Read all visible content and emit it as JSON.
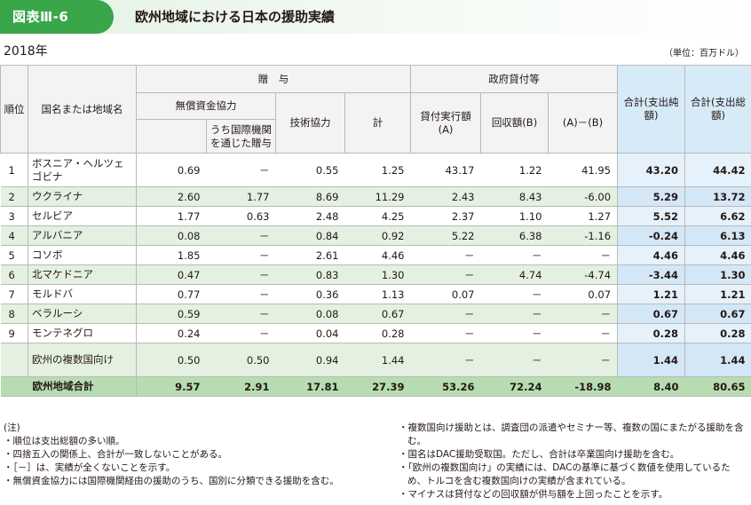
{
  "header": {
    "figure_label": "図表Ⅲ-6",
    "title": "欧州地域における日本の援助実績"
  },
  "year": "2018年",
  "unit": "（単位：百万ドル）",
  "columns": {
    "rank": "順位",
    "name": "国名または地域名",
    "grant_group": "贈　与",
    "grant_aid": "無償資金協力",
    "via_intl": "うち国際機関を通じた贈与",
    "tech_coop": "技術協力",
    "subtotal": "計",
    "loan_group": "政府貸付等",
    "disbursed": "貸付実行額(A)",
    "recovered": "回収額(B)",
    "net_loan": "(A)－(B)",
    "net_total": "合計(支出純額)",
    "gross_total": "合計(支出総額)"
  },
  "rows": [
    {
      "rank": "1",
      "name": "ボスニア・ヘルツェゴビナ",
      "grant_aid": "0.69",
      "via_intl": "－",
      "tech_coop": "0.55",
      "subtotal": "1.25",
      "disbursed": "43.17",
      "recovered": "1.22",
      "net_loan": "41.95",
      "net_total": "43.20",
      "gross_total": "44.42"
    },
    {
      "rank": "2",
      "name": "ウクライナ",
      "grant_aid": "2.60",
      "via_intl": "1.77",
      "tech_coop": "8.69",
      "subtotal": "11.29",
      "disbursed": "2.43",
      "recovered": "8.43",
      "net_loan": "-6.00",
      "net_total": "5.29",
      "gross_total": "13.72"
    },
    {
      "rank": "3",
      "name": "セルビア",
      "grant_aid": "1.77",
      "via_intl": "0.63",
      "tech_coop": "2.48",
      "subtotal": "4.25",
      "disbursed": "2.37",
      "recovered": "1.10",
      "net_loan": "1.27",
      "net_total": "5.52",
      "gross_total": "6.62"
    },
    {
      "rank": "4",
      "name": "アルバニア",
      "grant_aid": "0.08",
      "via_intl": "－",
      "tech_coop": "0.84",
      "subtotal": "0.92",
      "disbursed": "5.22",
      "recovered": "6.38",
      "net_loan": "-1.16",
      "net_total": "-0.24",
      "gross_total": "6.13"
    },
    {
      "rank": "5",
      "name": "コソボ",
      "grant_aid": "1.85",
      "via_intl": "－",
      "tech_coop": "2.61",
      "subtotal": "4.46",
      "disbursed": "－",
      "recovered": "－",
      "net_loan": "－",
      "net_total": "4.46",
      "gross_total": "4.46"
    },
    {
      "rank": "6",
      "name": "北マケドニア",
      "grant_aid": "0.47",
      "via_intl": "－",
      "tech_coop": "0.83",
      "subtotal": "1.30",
      "disbursed": "－",
      "recovered": "4.74",
      "net_loan": "-4.74",
      "net_total": "-3.44",
      "gross_total": "1.30"
    },
    {
      "rank": "7",
      "name": "モルドバ",
      "grant_aid": "0.77",
      "via_intl": "－",
      "tech_coop": "0.36",
      "subtotal": "1.13",
      "disbursed": "0.07",
      "recovered": "－",
      "net_loan": "0.07",
      "net_total": "1.21",
      "gross_total": "1.21"
    },
    {
      "rank": "8",
      "name": "ベラルーシ",
      "grant_aid": "0.59",
      "via_intl": "－",
      "tech_coop": "0.08",
      "subtotal": "0.67",
      "disbursed": "－",
      "recovered": "－",
      "net_loan": "－",
      "net_total": "0.67",
      "gross_total": "0.67"
    },
    {
      "rank": "9",
      "name": "モンテネグロ",
      "grant_aid": "0.24",
      "via_intl": "－",
      "tech_coop": "0.04",
      "subtotal": "0.28",
      "disbursed": "－",
      "recovered": "－",
      "net_loan": "－",
      "net_total": "0.28",
      "gross_total": "0.28"
    },
    {
      "rank": "",
      "name": "欧州の複数国向け",
      "grant_aid": "0.50",
      "via_intl": "0.50",
      "tech_coop": "0.94",
      "subtotal": "1.44",
      "disbursed": "－",
      "recovered": "－",
      "net_loan": "－",
      "net_total": "1.44",
      "gross_total": "1.44"
    }
  ],
  "total": {
    "name": "欧州地域合計",
    "grant_aid": "9.57",
    "via_intl": "2.91",
    "tech_coop": "17.81",
    "subtotal": "27.39",
    "disbursed": "53.26",
    "recovered": "72.24",
    "net_loan": "-18.98",
    "net_total": "8.40",
    "gross_total": "80.65"
  },
  "notes": {
    "heading": "(注)",
    "left": [
      "・順位は支出総額の多い順。",
      "・四捨五入の関係上、合計が一致しないことがある。",
      "・［－］は、実績が全くないことを示す。",
      "・無償資金協力には国際機関経由の援助のうち、国別に分類できる援助を含む。"
    ],
    "right": [
      "・複数国向け援助とは、調査団の派遣やセミナー等、複数の国にまたがる援助を含む。",
      "・国名はDAC援助受取国。ただし、合計は卒業国向け援助を含む。",
      "・「欧州の複数国向け」の実績には、DACの基準に基づく数値を使用しているため、トルコを含む複数国向けの実績が含まれている。",
      "・マイナスは貸付などの回収額が供与額を上回ったことを示す。"
    ]
  },
  "colors": {
    "accent_green": "#3aa64a",
    "row_alt_green": "#e4f1e0",
    "total_green": "#b8dcb1",
    "sum_blue": "#d7eaf7"
  }
}
